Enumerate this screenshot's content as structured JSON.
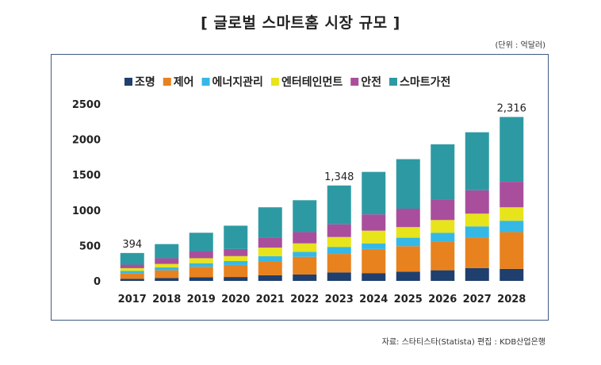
{
  "header": {
    "title": "[ 글로벌 스마트홈 시장 규모 ]",
    "unit": "(단위 : 억달러)"
  },
  "footer": {
    "source": "자료: 스타티스타(Statista) 편집 : KDB산업은행"
  },
  "chart_data": {
    "type": "bar",
    "stacked": true,
    "title": "[ 글로벌 스마트홈 시장 규모 ]",
    "xlabel": "",
    "ylabel": "",
    "ylim": [
      0,
      2500
    ],
    "yticks": [
      "0",
      "500",
      "1000",
      "1500",
      "2000",
      "2500"
    ],
    "grid": false,
    "legend_position": "top",
    "categories": [
      "2017",
      "2018",
      "2019",
      "2020",
      "2021",
      "2022",
      "2023",
      "2024",
      "2025",
      "2026",
      "2027",
      "2028"
    ],
    "series": [
      {
        "name": "조명",
        "color": "#1f3f6e",
        "values": [
          30,
          40,
          50,
          55,
          80,
          90,
          120,
          110,
          130,
          150,
          180,
          170
        ]
      },
      {
        "name": "제어",
        "color": "#e8821e",
        "values": [
          80,
          110,
          150,
          170,
          200,
          250,
          260,
          340,
          360,
          400,
          430,
          520
        ]
      },
      {
        "name": "에너지관리",
        "color": "#35b8e6",
        "values": [
          30,
          40,
          50,
          55,
          70,
          70,
          100,
          80,
          120,
          130,
          160,
          160
        ]
      },
      {
        "name": "엔터테인먼트",
        "color": "#e7e41c",
        "values": [
          40,
          50,
          70,
          70,
          120,
          120,
          140,
          180,
          150,
          180,
          180,
          190
        ]
      },
      {
        "name": "안전",
        "color": "#a94e9c",
        "values": [
          50,
          80,
          100,
          100,
          140,
          160,
          180,
          230,
          260,
          290,
          330,
          360
        ]
      },
      {
        "name": "스마트가전",
        "color": "#2d9aa3",
        "values": [
          164,
          200,
          260,
          330,
          430,
          450,
          548,
          600,
          700,
          780,
          820,
          916
        ]
      }
    ],
    "data_labels": [
      {
        "category": "2017",
        "text": "394"
      },
      {
        "category": "2023",
        "text": "1,348"
      },
      {
        "category": "2028",
        "text": "2,316"
      }
    ]
  }
}
